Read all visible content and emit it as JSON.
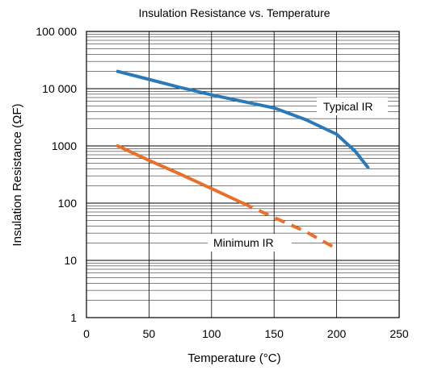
{
  "chart_data": {
    "type": "line",
    "title": "Insulation Resistance vs. Temperature",
    "xlabel": "Temperature (°C)",
    "ylabel": "Insulation Resistance (ΩF)",
    "xlim": [
      0,
      250
    ],
    "ylim": [
      1,
      100000
    ],
    "y_scale": "log",
    "grid": true,
    "x_ticks": [
      0,
      50,
      100,
      150,
      200,
      250
    ],
    "x_tick_labels": [
      "0",
      "50",
      "100",
      "150",
      "200",
      "250"
    ],
    "y_ticks": [
      1,
      10,
      100,
      1000,
      10000,
      100000
    ],
    "y_tick_labels": [
      "1",
      "10",
      "100",
      "1000",
      "10 000",
      "100 000"
    ],
    "series": [
      {
        "name": "Typical IR",
        "color": "#2a7ab9",
        "line_style": "solid",
        "points": [
          [
            25,
            20000
          ],
          [
            50,
            14500
          ],
          [
            75,
            10500
          ],
          [
            100,
            7800
          ],
          [
            125,
            6000
          ],
          [
            150,
            4600
          ],
          [
            175,
            2900
          ],
          [
            200,
            1600
          ],
          [
            215,
            800
          ],
          [
            225,
            420
          ]
        ]
      },
      {
        "name": "Minimum IR",
        "color": "#e8702a",
        "line_style": "solid-then-dashed",
        "dash_from_x": 125,
        "points": [
          [
            25,
            1000
          ],
          [
            50,
            560
          ],
          [
            75,
            320
          ],
          [
            100,
            180
          ],
          [
            125,
            100
          ],
          [
            150,
            56
          ],
          [
            175,
            32
          ],
          [
            200,
            16
          ]
        ]
      }
    ]
  }
}
